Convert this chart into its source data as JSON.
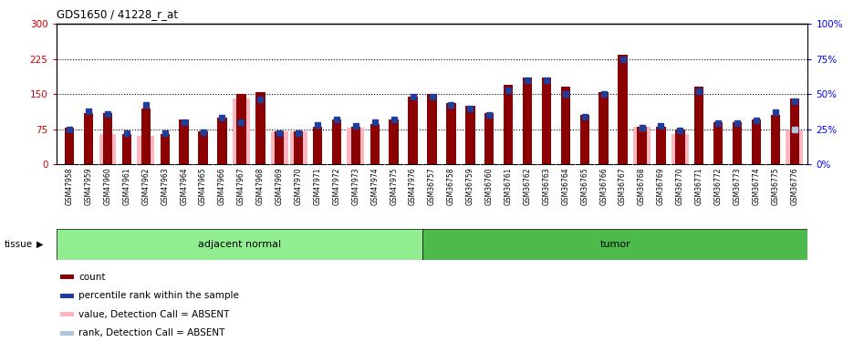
{
  "title": "GDS1650 / 41228_r_at",
  "samples": [
    "GSM47958",
    "GSM47959",
    "GSM47960",
    "GSM47961",
    "GSM47962",
    "GSM47963",
    "GSM47964",
    "GSM47965",
    "GSM47966",
    "GSM47967",
    "GSM47968",
    "GSM47969",
    "GSM47970",
    "GSM47971",
    "GSM47972",
    "GSM47973",
    "GSM47974",
    "GSM47975",
    "GSM47976",
    "GSM36757",
    "GSM36758",
    "GSM36759",
    "GSM36760",
    "GSM36761",
    "GSM36762",
    "GSM36763",
    "GSM36764",
    "GSM36765",
    "GSM36766",
    "GSM36767",
    "GSM36768",
    "GSM36769",
    "GSM36770",
    "GSM36771",
    "GSM36772",
    "GSM36773",
    "GSM36774",
    "GSM36775",
    "GSM36776"
  ],
  "counts": [
    78,
    110,
    110,
    65,
    120,
    65,
    95,
    70,
    100,
    150,
    155,
    70,
    70,
    80,
    95,
    80,
    85,
    95,
    145,
    150,
    130,
    125,
    110,
    170,
    185,
    185,
    165,
    105,
    155,
    235,
    80,
    80,
    75,
    165,
    90,
    90,
    95,
    105,
    140
  ],
  "percentile_ranks": [
    25,
    38,
    36,
    22,
    42,
    22,
    30,
    23,
    33,
    30,
    46,
    22,
    22,
    28,
    32,
    27,
    30,
    32,
    48,
    48,
    42,
    40,
    35,
    53,
    60,
    60,
    50,
    34,
    50,
    75,
    26,
    27,
    24,
    52,
    29,
    29,
    31,
    37,
    45
  ],
  "absent_value": [
    null,
    null,
    65,
    null,
    60,
    null,
    null,
    null,
    null,
    140,
    null,
    70,
    70,
    null,
    null,
    78,
    null,
    null,
    null,
    null,
    null,
    null,
    null,
    null,
    null,
    null,
    null,
    null,
    null,
    null,
    80,
    null,
    65,
    null,
    null,
    null,
    null,
    null,
    72
  ],
  "absent_rank": [
    null,
    null,
    null,
    null,
    null,
    null,
    null,
    null,
    null,
    null,
    null,
    null,
    null,
    null,
    null,
    null,
    null,
    null,
    null,
    null,
    null,
    null,
    null,
    null,
    null,
    null,
    null,
    null,
    null,
    null,
    26,
    null,
    null,
    null,
    null,
    null,
    null,
    null,
    25
  ],
  "group1_label": "adjacent normal",
  "group2_label": "tumor",
  "group1_count": 19,
  "group2_count": 20,
  "ylim_left": [
    0,
    300
  ],
  "ylim_right": [
    0,
    100
  ],
  "yticks_left": [
    0,
    75,
    150,
    225,
    300
  ],
  "yticks_right": [
    0,
    25,
    50,
    75,
    100
  ],
  "hlines": [
    75,
    150,
    225
  ],
  "bar_color": "#8B0000",
  "percentile_color": "#1F3D99",
  "absent_bar_color": "#FFB6C1",
  "absent_rank_color": "#B0C4DE",
  "group1_bg": "#90EE90",
  "group2_bg": "#4CBB4C",
  "plot_bg": "#FFFFFF",
  "xticklabel_bg": "#D3D3D3",
  "legend_items": [
    {
      "label": "count",
      "color": "#8B0000"
    },
    {
      "label": "percentile rank within the sample",
      "color": "#1F3D99"
    },
    {
      "label": "value, Detection Call = ABSENT",
      "color": "#FFB6C1"
    },
    {
      "label": "rank, Detection Call = ABSENT",
      "color": "#B0C4DE"
    }
  ]
}
